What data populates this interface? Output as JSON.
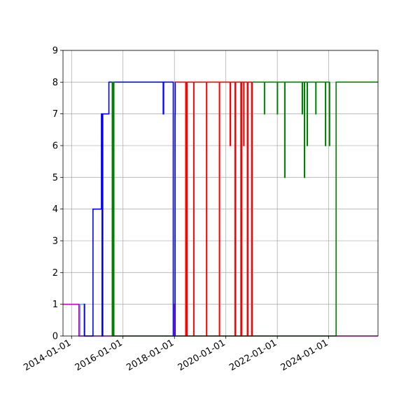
{
  "chart_data": {
    "type": "line",
    "title": "",
    "xlabel": "",
    "ylabel": "",
    "xlim": [
      "2013-09-01",
      "2025-12-01"
    ],
    "ylim": [
      0,
      9
    ],
    "grid": true,
    "x_ticks": [
      "2014-01-01",
      "2016-01-01",
      "2018-01-01",
      "2020-01-01",
      "2022-01-01",
      "2024-01-01"
    ],
    "y_ticks": [
      0,
      1,
      2,
      3,
      4,
      5,
      6,
      7,
      8,
      9
    ],
    "series": [
      {
        "color": "#c000c0",
        "points": [
          [
            "2013-09-01",
            1
          ],
          [
            "2014-04-15",
            1
          ],
          [
            "2014-04-15",
            0
          ],
          [
            "2018-01-01",
            0
          ],
          [
            "2018-01-01",
            1
          ],
          [
            "2018-01-05",
            1
          ],
          [
            "2018-01-05",
            0
          ],
          [
            "2025-12-01",
            0
          ]
        ]
      },
      {
        "color": "#6aa6d8",
        "points": [
          [
            "2014-05-01",
            0
          ],
          [
            "2014-05-01",
            1
          ],
          [
            "2014-07-01",
            1
          ],
          [
            "2014-07-01",
            0
          ]
        ]
      },
      {
        "color": "#0000ff",
        "points": [
          [
            "2014-07-01",
            0
          ],
          [
            "2014-07-01",
            1
          ],
          [
            "2014-07-05",
            1
          ],
          [
            "2014-07-05",
            0
          ],
          [
            "2014-11-01",
            0
          ],
          [
            "2014-11-01",
            4
          ],
          [
            "2015-03-01",
            4
          ],
          [
            "2015-03-01",
            7
          ],
          [
            "2015-03-10",
            7
          ],
          [
            "2015-03-10",
            0
          ],
          [
            "2015-03-20",
            0
          ],
          [
            "2015-03-20",
            7
          ],
          [
            "2015-06-15",
            7
          ],
          [
            "2015-06-15",
            8
          ],
          [
            "2017-07-25",
            8
          ],
          [
            "2017-07-25",
            7
          ],
          [
            "2017-08-01",
            7
          ],
          [
            "2017-08-01",
            8
          ],
          [
            "2017-12-15",
            8
          ],
          [
            "2017-12-15",
            0
          ],
          [
            "2018-01-10",
            0
          ],
          [
            "2018-01-10",
            7
          ],
          [
            "2018-01-12",
            7
          ],
          [
            "2018-01-12",
            8
          ],
          [
            "2018-01-15",
            8
          ]
        ]
      },
      {
        "color": "#ff0000",
        "points": [
          [
            "2018-01-10",
            8
          ],
          [
            "2018-06-10",
            8
          ],
          [
            "2018-06-10",
            0
          ],
          [
            "2018-06-20",
            0
          ],
          [
            "2018-06-20",
            8
          ],
          [
            "2018-06-25",
            8
          ],
          [
            "2018-06-25",
            0
          ],
          [
            "2018-07-01",
            0
          ],
          [
            "2018-07-01",
            8
          ],
          [
            "2018-10-01",
            8
          ],
          [
            "2018-10-01",
            0
          ],
          [
            "2018-10-05",
            0
          ],
          [
            "2018-10-05",
            8
          ],
          [
            "2019-04-01",
            8
          ],
          [
            "2019-04-01",
            0
          ],
          [
            "2019-04-05",
            0
          ],
          [
            "2019-04-05",
            8
          ],
          [
            "2019-10-01",
            8
          ],
          [
            "2019-10-01",
            0
          ],
          [
            "2019-10-05",
            0
          ],
          [
            "2019-10-05",
            8
          ],
          [
            "2020-03-01",
            8
          ],
          [
            "2020-03-01",
            6
          ],
          [
            "2020-03-08",
            6
          ],
          [
            "2020-03-08",
            8
          ],
          [
            "2020-05-10",
            8
          ],
          [
            "2020-05-10",
            0
          ],
          [
            "2020-05-20",
            0
          ],
          [
            "2020-05-20",
            8
          ],
          [
            "2020-08-01",
            8
          ],
          [
            "2020-08-01",
            0
          ],
          [
            "2020-08-15",
            0
          ],
          [
            "2020-08-15",
            8
          ],
          [
            "2020-09-10",
            8
          ],
          [
            "2020-09-10",
            6
          ],
          [
            "2020-09-15",
            6
          ],
          [
            "2020-09-15",
            8
          ],
          [
            "2020-11-01",
            8
          ],
          [
            "2020-11-01",
            0
          ],
          [
            "2020-11-10",
            0
          ],
          [
            "2020-11-10",
            8
          ],
          [
            "2021-01-01",
            8
          ],
          [
            "2021-01-01",
            0
          ],
          [
            "2021-01-10",
            0
          ],
          [
            "2021-01-10",
            8
          ]
        ]
      },
      {
        "color": "#008000",
        "points": [
          [
            "2015-08-01",
            0
          ],
          [
            "2015-08-01",
            8
          ],
          [
            "2015-08-05",
            8
          ],
          [
            "2015-08-05",
            0
          ],
          [
            "2015-08-10",
            0
          ],
          [
            "2015-08-10",
            8
          ],
          [
            "2015-08-15",
            8
          ],
          [
            "2015-08-15",
            0
          ],
          [
            "2015-08-20",
            0
          ],
          [
            "2015-08-20",
            8
          ],
          [
            "2015-08-25",
            8
          ],
          [
            "2015-08-25",
            0
          ],
          [
            "2024-04-15",
            0
          ],
          [
            "2024-04-15",
            8
          ],
          [
            "2025-12-01",
            8
          ]
        ]
      },
      {
        "color": "#008000",
        "points": [
          [
            "2021-01-10",
            8
          ],
          [
            "2021-07-01",
            8
          ],
          [
            "2021-07-01",
            7
          ],
          [
            "2021-07-05",
            7
          ],
          [
            "2021-07-05",
            8
          ],
          [
            "2022-01-01",
            8
          ],
          [
            "2022-01-01",
            7
          ],
          [
            "2022-01-05",
            7
          ],
          [
            "2022-01-05",
            8
          ],
          [
            "2022-04-15",
            8
          ],
          [
            "2022-04-15",
            5
          ],
          [
            "2022-04-20",
            5
          ],
          [
            "2022-04-20",
            8
          ],
          [
            "2022-12-20",
            8
          ],
          [
            "2022-12-20",
            7
          ],
          [
            "2022-12-25",
            7
          ],
          [
            "2022-12-25",
            8
          ],
          [
            "2023-01-20",
            8
          ],
          [
            "2023-01-20",
            5
          ],
          [
            "2023-01-25",
            5
          ],
          [
            "2023-01-25",
            8
          ],
          [
            "2023-03-01",
            8
          ],
          [
            "2023-03-01",
            6
          ],
          [
            "2023-03-05",
            6
          ],
          [
            "2023-03-05",
            8
          ],
          [
            "2023-07-01",
            8
          ],
          [
            "2023-07-01",
            7
          ],
          [
            "2023-07-05",
            7
          ],
          [
            "2023-07-05",
            8
          ],
          [
            "2023-11-15",
            8
          ],
          [
            "2023-11-15",
            6
          ],
          [
            "2023-11-20",
            6
          ],
          [
            "2023-11-20",
            8
          ],
          [
            "2024-01-10",
            8
          ],
          [
            "2024-01-10",
            6
          ],
          [
            "2024-01-15",
            6
          ],
          [
            "2024-01-15",
            8
          ]
        ]
      }
    ]
  }
}
